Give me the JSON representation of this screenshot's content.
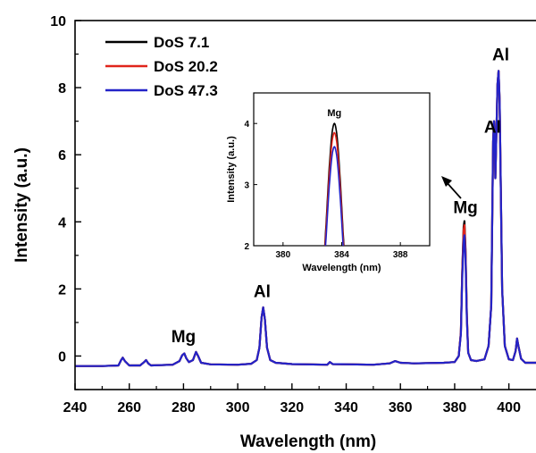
{
  "chart_data": {
    "type": "line",
    "xlabel": "Wavelength (nm)",
    "ylabel": "Intensity (a.u.)",
    "xlim": [
      240,
      410
    ],
    "ylim": [
      -1,
      10
    ],
    "x_ticks": [
      "240",
      "260",
      "280",
      "300",
      "320",
      "340",
      "360",
      "380",
      "400"
    ],
    "y_ticks": [
      "0",
      "2",
      "4",
      "6",
      "8",
      "10"
    ],
    "legend_position": "top-left",
    "series": [
      {
        "name": "DoS 7.1",
        "color": "#000000",
        "points": [
          [
            240,
            -0.3
          ],
          [
            250,
            -0.3
          ],
          [
            256,
            -0.28
          ],
          [
            257,
            -0.12
          ],
          [
            257.6,
            -0.05
          ],
          [
            258.4,
            -0.15
          ],
          [
            260,
            -0.28
          ],
          [
            264,
            -0.28
          ],
          [
            265.5,
            -0.18
          ],
          [
            266.2,
            -0.12
          ],
          [
            267,
            -0.22
          ],
          [
            268,
            -0.28
          ],
          [
            276,
            -0.26
          ],
          [
            278.5,
            -0.15
          ],
          [
            279.5,
            0.02
          ],
          [
            280.3,
            0.08
          ],
          [
            281,
            -0.06
          ],
          [
            282,
            -0.18
          ],
          [
            283.5,
            -0.12
          ],
          [
            284.6,
            0.12
          ],
          [
            285.4,
            0.0
          ],
          [
            286.5,
            -0.2
          ],
          [
            290,
            -0.25
          ],
          [
            300,
            -0.26
          ],
          [
            305,
            -0.23
          ],
          [
            307,
            -0.12
          ],
          [
            308,
            0.25
          ],
          [
            308.8,
            1.15
          ],
          [
            309.4,
            1.45
          ],
          [
            310,
            1.1
          ],
          [
            310.8,
            0.25
          ],
          [
            312,
            -0.12
          ],
          [
            314,
            -0.2
          ],
          [
            320,
            -0.24
          ],
          [
            333,
            -0.26
          ],
          [
            334,
            -0.18
          ],
          [
            335,
            -0.24
          ],
          [
            350,
            -0.26
          ],
          [
            356,
            -0.22
          ],
          [
            358,
            -0.15
          ],
          [
            360,
            -0.2
          ],
          [
            365,
            -0.22
          ],
          [
            376,
            -0.2
          ],
          [
            380,
            -0.18
          ],
          [
            381.5,
            0.0
          ],
          [
            382.3,
            0.7
          ],
          [
            382.8,
            2.5
          ],
          [
            383.3,
            3.85
          ],
          [
            383.6,
            4.02
          ],
          [
            384,
            3.2
          ],
          [
            384.5,
            1.2
          ],
          [
            385,
            0.1
          ],
          [
            386,
            -0.12
          ],
          [
            388,
            -0.15
          ],
          [
            391,
            -0.1
          ],
          [
            392.5,
            0.3
          ],
          [
            393.5,
            1.5
          ],
          [
            394.2,
            6.4
          ],
          [
            394.5,
            7.0
          ],
          [
            394.8,
            6.5
          ],
          [
            395,
            5.3
          ],
          [
            395.3,
            6.3
          ],
          [
            395.8,
            8.1
          ],
          [
            396.2,
            8.5
          ],
          [
            396.6,
            7.6
          ],
          [
            397,
            5.2
          ],
          [
            397.5,
            2.0
          ],
          [
            398.5,
            0.3
          ],
          [
            400,
            -0.1
          ],
          [
            401.5,
            -0.12
          ],
          [
            402.5,
            0.15
          ],
          [
            403,
            0.52
          ],
          [
            403.5,
            0.3
          ],
          [
            404.5,
            -0.08
          ],
          [
            406,
            -0.2
          ],
          [
            410,
            -0.2
          ]
        ]
      },
      {
        "name": "DoS 20.2",
        "color": "#e0241b",
        "points": [
          [
            240,
            -0.3
          ],
          [
            250,
            -0.3
          ],
          [
            256,
            -0.28
          ],
          [
            257,
            -0.12
          ],
          [
            257.6,
            -0.05
          ],
          [
            258.4,
            -0.15
          ],
          [
            260,
            -0.28
          ],
          [
            264,
            -0.28
          ],
          [
            265.5,
            -0.18
          ],
          [
            266.2,
            -0.12
          ],
          [
            267,
            -0.22
          ],
          [
            268,
            -0.28
          ],
          [
            276,
            -0.26
          ],
          [
            278.5,
            -0.15
          ],
          [
            279.5,
            0.02
          ],
          [
            280.3,
            0.08
          ],
          [
            281,
            -0.06
          ],
          [
            282,
            -0.18
          ],
          [
            283.5,
            -0.12
          ],
          [
            284.6,
            0.12
          ],
          [
            285.4,
            0.0
          ],
          [
            286.5,
            -0.2
          ],
          [
            290,
            -0.25
          ],
          [
            300,
            -0.26
          ],
          [
            305,
            -0.23
          ],
          [
            307,
            -0.12
          ],
          [
            308,
            0.25
          ],
          [
            308.8,
            1.15
          ],
          [
            309.4,
            1.45
          ],
          [
            310,
            1.1
          ],
          [
            310.8,
            0.25
          ],
          [
            312,
            -0.12
          ],
          [
            314,
            -0.2
          ],
          [
            320,
            -0.24
          ],
          [
            333,
            -0.26
          ],
          [
            334,
            -0.18
          ],
          [
            335,
            -0.24
          ],
          [
            350,
            -0.26
          ],
          [
            356,
            -0.22
          ],
          [
            358,
            -0.15
          ],
          [
            360,
            -0.2
          ],
          [
            365,
            -0.22
          ],
          [
            376,
            -0.2
          ],
          [
            380,
            -0.18
          ],
          [
            381.5,
            0.0
          ],
          [
            382.3,
            0.7
          ],
          [
            382.8,
            2.45
          ],
          [
            383.3,
            3.75
          ],
          [
            383.6,
            3.9
          ],
          [
            384,
            3.1
          ],
          [
            384.5,
            1.2
          ],
          [
            385,
            0.1
          ],
          [
            386,
            -0.12
          ],
          [
            388,
            -0.15
          ],
          [
            391,
            -0.1
          ],
          [
            392.5,
            0.3
          ],
          [
            393.5,
            1.5
          ],
          [
            394.2,
            6.4
          ],
          [
            394.5,
            7.0
          ],
          [
            394.8,
            6.5
          ],
          [
            395,
            5.3
          ],
          [
            395.3,
            6.3
          ],
          [
            395.8,
            8.1
          ],
          [
            396.2,
            8.5
          ],
          [
            396.6,
            7.6
          ],
          [
            397,
            5.2
          ],
          [
            397.5,
            2.0
          ],
          [
            398.5,
            0.3
          ],
          [
            400,
            -0.1
          ],
          [
            401.5,
            -0.12
          ],
          [
            402.5,
            0.15
          ],
          [
            403,
            0.52
          ],
          [
            403.5,
            0.3
          ],
          [
            404.5,
            -0.08
          ],
          [
            406,
            -0.2
          ],
          [
            410,
            -0.2
          ]
        ]
      },
      {
        "name": "DoS 47.3",
        "color": "#2323c8",
        "points": [
          [
            240,
            -0.3
          ],
          [
            250,
            -0.3
          ],
          [
            256,
            -0.28
          ],
          [
            257,
            -0.12
          ],
          [
            257.6,
            -0.05
          ],
          [
            258.4,
            -0.15
          ],
          [
            260,
            -0.28
          ],
          [
            264,
            -0.28
          ],
          [
            265.5,
            -0.18
          ],
          [
            266.2,
            -0.12
          ],
          [
            267,
            -0.22
          ],
          [
            268,
            -0.28
          ],
          [
            276,
            -0.26
          ],
          [
            278.5,
            -0.15
          ],
          [
            279.5,
            0.02
          ],
          [
            280.3,
            0.08
          ],
          [
            281,
            -0.06
          ],
          [
            282,
            -0.18
          ],
          [
            283.5,
            -0.12
          ],
          [
            284.6,
            0.12
          ],
          [
            285.4,
            0.0
          ],
          [
            286.5,
            -0.2
          ],
          [
            290,
            -0.25
          ],
          [
            300,
            -0.26
          ],
          [
            305,
            -0.23
          ],
          [
            307,
            -0.12
          ],
          [
            308,
            0.25
          ],
          [
            308.8,
            1.15
          ],
          [
            309.4,
            1.45
          ],
          [
            310,
            1.1
          ],
          [
            310.8,
            0.25
          ],
          [
            312,
            -0.12
          ],
          [
            314,
            -0.2
          ],
          [
            320,
            -0.24
          ],
          [
            333,
            -0.26
          ],
          [
            334,
            -0.18
          ],
          [
            335,
            -0.24
          ],
          [
            350,
            -0.26
          ],
          [
            356,
            -0.22
          ],
          [
            358,
            -0.15
          ],
          [
            360,
            -0.2
          ],
          [
            365,
            -0.22
          ],
          [
            376,
            -0.2
          ],
          [
            380,
            -0.18
          ],
          [
            381.5,
            0.0
          ],
          [
            382.3,
            0.65
          ],
          [
            382.8,
            2.3
          ],
          [
            383.3,
            3.45
          ],
          [
            383.6,
            3.6
          ],
          [
            384,
            2.9
          ],
          [
            384.5,
            1.1
          ],
          [
            385,
            0.1
          ],
          [
            386,
            -0.12
          ],
          [
            388,
            -0.15
          ],
          [
            391,
            -0.1
          ],
          [
            392.5,
            0.3
          ],
          [
            393.5,
            1.5
          ],
          [
            394.2,
            6.4
          ],
          [
            394.5,
            7.0
          ],
          [
            394.8,
            6.5
          ],
          [
            395,
            5.3
          ],
          [
            395.3,
            6.3
          ],
          [
            395.8,
            8.1
          ],
          [
            396.2,
            8.5
          ],
          [
            396.6,
            7.6
          ],
          [
            397,
            5.2
          ],
          [
            397.5,
            2.0
          ],
          [
            398.5,
            0.3
          ],
          [
            400,
            -0.1
          ],
          [
            401.5,
            -0.12
          ],
          [
            402.5,
            0.15
          ],
          [
            403,
            0.52
          ],
          [
            403.5,
            0.3
          ],
          [
            404.5,
            -0.08
          ],
          [
            406,
            -0.2
          ],
          [
            410,
            -0.2
          ]
        ]
      }
    ],
    "annotations": [
      {
        "text": "Mg",
        "x": 280,
        "y": 0.25
      },
      {
        "text": "Al",
        "x": 309,
        "y": 1.6
      },
      {
        "text": "Mg",
        "x": 384,
        "y": 4.1
      },
      {
        "text": "Al",
        "x": 394,
        "y": 6.5
      },
      {
        "text": "Al",
        "x": 397,
        "y": 8.65
      }
    ],
    "inset": {
      "type": "line",
      "xlabel": "Wavelength (nm)",
      "ylabel": "Intensity (a.u.)",
      "xlim": [
        378,
        390
      ],
      "ylim": [
        2,
        4.5
      ],
      "x_ticks": [
        "380",
        "384",
        "388"
      ],
      "y_ticks": [
        "2",
        "3",
        "4"
      ],
      "annotation": "Mg",
      "series": [
        {
          "name": "DoS 7.1",
          "color": "#000000",
          "peak": 4.0
        },
        {
          "name": "DoS 20.2",
          "color": "#e0241b",
          "peak": 3.85
        },
        {
          "name": "DoS 47.3",
          "color": "#2323c8",
          "peak": 3.62
        }
      ]
    }
  }
}
